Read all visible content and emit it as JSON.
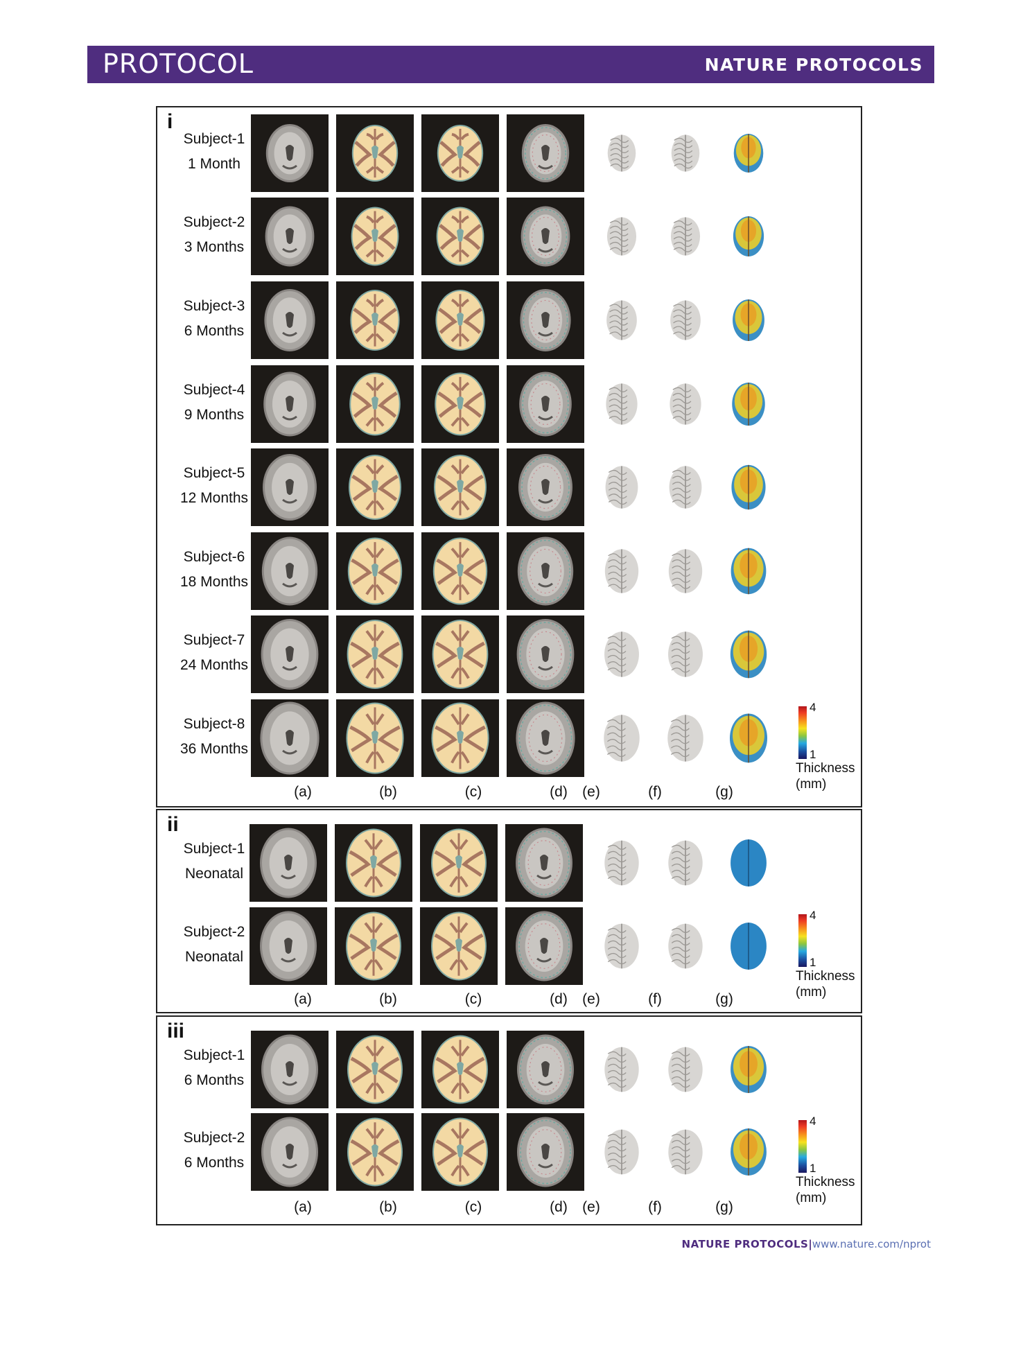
{
  "header": {
    "section": "PROTOCOL",
    "journal": "NATURE PROTOCOLS"
  },
  "footer": {
    "journal": "NATURE PROTOCOLS",
    "separator": "|",
    "url": "www.nature.com/nprot"
  },
  "column_labels": [
    "(a)",
    "(b)",
    "(c)",
    "(d)",
    "(e)",
    "(f)",
    "(g)"
  ],
  "colorbar": {
    "max": "4",
    "min": "1",
    "title_line1": "Thickness",
    "title_line2": "(mm)"
  },
  "colors": {
    "header_bg": "#4f2d7f",
    "wm": "#f3d9a4",
    "gm": "#a87761",
    "csf": "#7fa8a3"
  },
  "panels": [
    {
      "label": "i",
      "rows": [
        {
          "subject": "Subject-1",
          "age": "1 Month"
        },
        {
          "subject": "Subject-2",
          "age": "3 Months"
        },
        {
          "subject": "Subject-3",
          "age": "6 Months"
        },
        {
          "subject": "Subject-4",
          "age": "9 Months"
        },
        {
          "subject": "Subject-5",
          "age": "12 Months"
        },
        {
          "subject": "Subject-6",
          "age": "18 Months"
        },
        {
          "subject": "Subject-7",
          "age": "24 Months"
        },
        {
          "subject": "Subject-8",
          "age": "36 Months"
        }
      ]
    },
    {
      "label": "ii",
      "rows": [
        {
          "subject": "Subject-1",
          "age": "Neonatal"
        },
        {
          "subject": "Subject-2",
          "age": "Neonatal"
        }
      ]
    },
    {
      "label": "iii",
      "rows": [
        {
          "subject": "Subject-1",
          "age": "6 Months"
        },
        {
          "subject": "Subject-2",
          "age": "6 Months"
        }
      ]
    }
  ]
}
